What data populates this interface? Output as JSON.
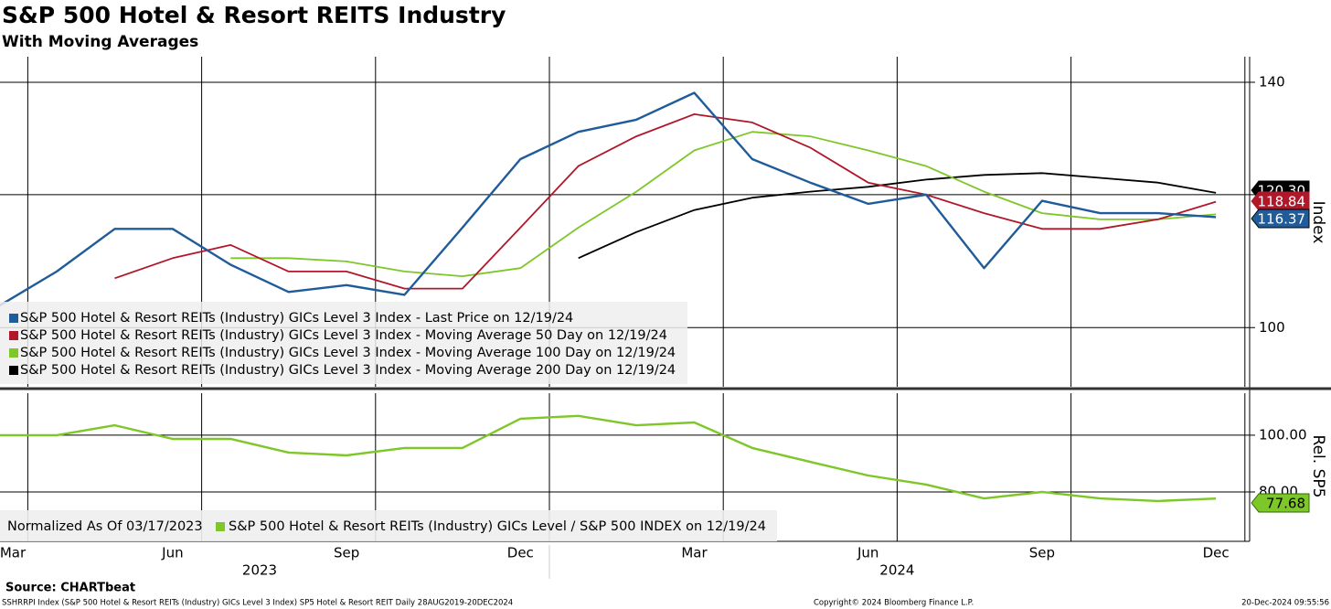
{
  "header": {
    "title": "S&P 500 Hotel & Resort REITS Industry",
    "subtitle": "With Moving Averages"
  },
  "footer": {
    "source": "Source: CHARTbeat",
    "ticker": "SSHRRPI Index (S&P 500 Hotel & Resort REITs (Industry) GICs Level 3 Index) SP5 Hotel & Resort REIT  Daily 28AUG2019-20DEC2024",
    "copyright": "Copyright© 2024 Bloomberg Finance L.P.",
    "timestamp": "20-Dec-2024 09:55:56"
  },
  "chart_data": [
    {
      "type": "line",
      "log_scale": true,
      "grid": true,
      "axis_label": "Index",
      "legend": "bottom-left",
      "x": [
        "2023-03",
        "2023-04",
        "2023-05",
        "2023-06",
        "2023-07",
        "2023-08",
        "2023-09",
        "2023-10",
        "2023-11",
        "2023-12",
        "2024-01",
        "2024-02",
        "2024-03",
        "2024-04",
        "2024-05",
        "2024-06",
        "2024-07",
        "2024-08",
        "2024-09",
        "2024-10",
        "2024-11",
        "2024-12"
      ],
      "ylim": [
        92.2,
        145
      ],
      "yticks": [
        100,
        120,
        140
      ],
      "series": [
        {
          "name": "S&P 500 Hotel & Resort REITs (Industry) GICs Level 3 Index - Last Price on 12/19/24",
          "color": "#1f5c99",
          "end_label": "116.37",
          "values": [
            103,
            108,
            114.5,
            114.5,
            109,
            105,
            106,
            104.6,
            114.7,
            126,
            130.8,
            133,
            138,
            126,
            122,
            118.5,
            120,
            108.5,
            119,
            117,
            117,
            116.37
          ]
        },
        {
          "name": "S&P 500 Hotel & Resort REITs (Industry) GICs Level 3 Index - Moving Average 50 Day on 12/19/24",
          "color": "#b0182a",
          "end_label": "118.84",
          "values": [
            null,
            null,
            107,
            110,
            112,
            108,
            108,
            105.5,
            105.5,
            114.7,
            124.8,
            130,
            134,
            132.5,
            128,
            122,
            120,
            117,
            114.5,
            114.5,
            116,
            118.84
          ]
        },
        {
          "name": "S&P 500 Hotel & Resort REITs (Industry) GICs Level 3 Index - Moving Average 100 Day on 12/19/24",
          "color": "#7dc728",
          "values": [
            null,
            null,
            null,
            null,
            110,
            110,
            109.5,
            108,
            107.3,
            108.5,
            114.7,
            120.5,
            127.5,
            130.8,
            130,
            127.5,
            124.8,
            120.5,
            117,
            116,
            116,
            116.8
          ]
        },
        {
          "name": "S&P 500 Hotel & Resort REITs (Industry) GICs Level 3 Index - Moving Average 200 Day on 12/19/24",
          "color": "#000000",
          "end_label": "120.30",
          "values": [
            null,
            null,
            null,
            null,
            null,
            null,
            null,
            null,
            null,
            null,
            110,
            114,
            117.5,
            119.5,
            120.5,
            121.3,
            122.5,
            123.3,
            123.6,
            122.8,
            122,
            120.3
          ]
        }
      ]
    },
    {
      "type": "line",
      "grid": true,
      "axis_label": "Rel. SP5",
      "note": "Normalized As Of 03/17/2023",
      "x": [
        "2023-03",
        "2023-04",
        "2023-05",
        "2023-06",
        "2023-07",
        "2023-08",
        "2023-09",
        "2023-10",
        "2023-11",
        "2023-12",
        "2024-01",
        "2024-02",
        "2024-03",
        "2024-04",
        "2024-05",
        "2024-06",
        "2024-07",
        "2024-08",
        "2024-09",
        "2024-10",
        "2024-11",
        "2024-12"
      ],
      "xticks": [
        {
          "value": "2023-03",
          "label": "Mar"
        },
        {
          "value": "2023-06",
          "label": "Jun"
        },
        {
          "value": "2023-09",
          "label": "Sep"
        },
        {
          "value": "2023-12",
          "label": "Dec"
        },
        {
          "value": "2024-03",
          "label": "Mar"
        },
        {
          "value": "2024-06",
          "label": "Jun"
        },
        {
          "value": "2024-09",
          "label": "Sep"
        },
        {
          "value": "2024-12",
          "label": "Dec"
        }
      ],
      "year_labels": [
        "2023",
        "2024"
      ],
      "ylim": [
        62.6,
        114.8
      ],
      "yticks": [
        {
          "value": 100,
          "label": "100.00"
        },
        {
          "value": 80,
          "label": "80.00"
        }
      ],
      "series": [
        {
          "name": "S&P 500 Hotel & Resort REITs (Industry) GICs Level / S&P 500 INDEX on 12/19/24",
          "color": "#7dc728",
          "end_label": "77.68",
          "values": [
            100,
            100,
            103.5,
            98.7,
            98.7,
            93.9,
            92.9,
            95.5,
            95.5,
            105.8,
            106.8,
            103.5,
            104.5,
            95.5,
            90.6,
            85.8,
            82.6,
            77.7,
            80,
            77.7,
            76.8,
            77.68
          ]
        }
      ]
    }
  ]
}
